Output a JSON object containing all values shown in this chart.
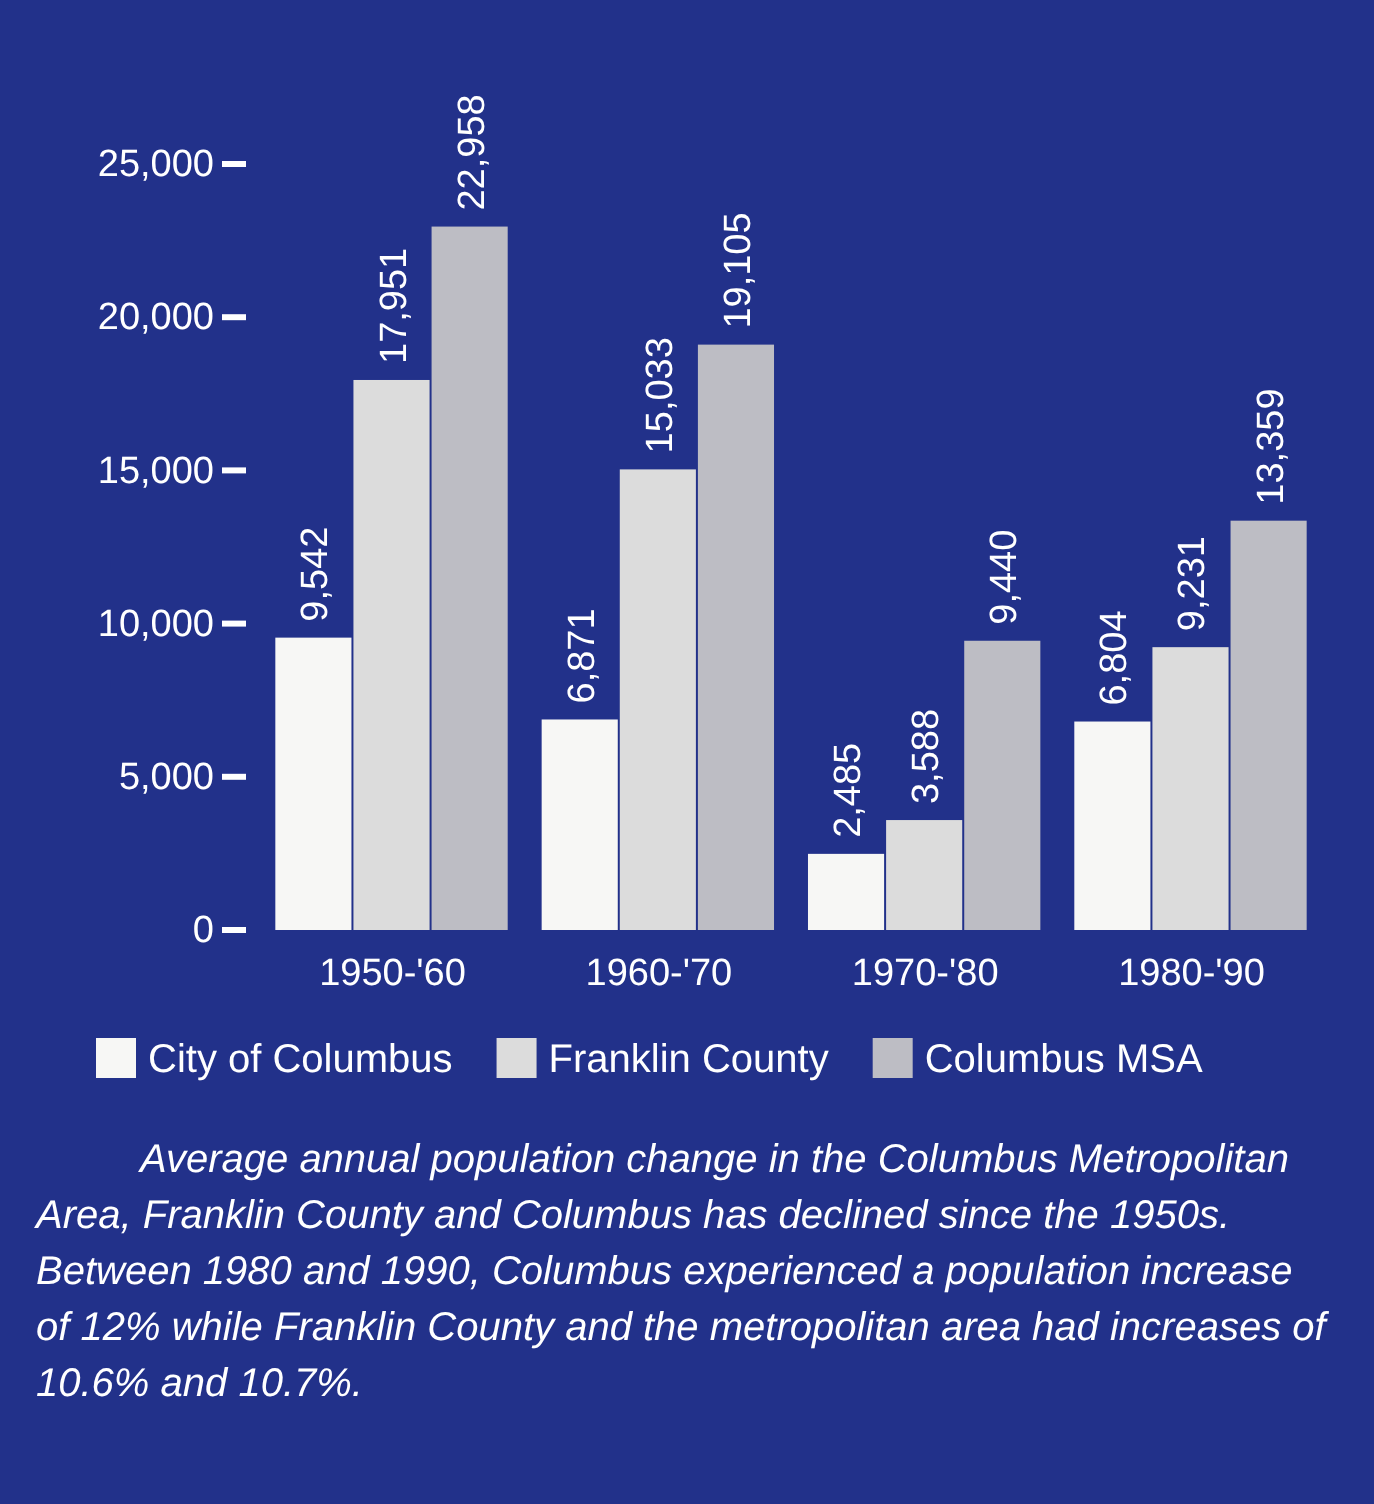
{
  "chart_data": {
    "type": "bar",
    "categories": [
      "1950-'60",
      "1960-'70",
      "1970-'80",
      "1980-'90"
    ],
    "series": [
      {
        "name": "City of Columbus",
        "color": "#f7f7f5",
        "values": [
          9542,
          6871,
          2485,
          6804
        ],
        "value_labels": [
          "9,542",
          "6,871",
          "2,485",
          "6,804"
        ]
      },
      {
        "name": "Franklin County",
        "color": "#dcdcdc",
        "values": [
          17951,
          15033,
          3588,
          9231
        ],
        "value_labels": [
          "17,951",
          "15,033",
          "3,588",
          "9,231"
        ]
      },
      {
        "name": "Columbus MSA",
        "color": "#bdbdc4",
        "values": [
          22958,
          19105,
          9440,
          13359
        ],
        "value_labels": [
          "22,958",
          "19,105",
          "9,440",
          "13,359"
        ]
      }
    ],
    "ylim": [
      0,
      25000
    ],
    "yticks": [
      {
        "value": 0,
        "label": "0"
      },
      {
        "value": 5000,
        "label": "5,000"
      },
      {
        "value": 10000,
        "label": "10,000"
      },
      {
        "value": 15000,
        "label": "15,000"
      },
      {
        "value": 20000,
        "label": "20,000"
      },
      {
        "value": 25000,
        "label": "25,000"
      }
    ],
    "grid": false,
    "legend": "bottom",
    "annotations": [
      "Average annual population change in the Columbus Metropolitan Area, Franklin County and Columbus has declined since the 1950s. Between 1980 and 1990, Columbus experienced a population increase of 12% while Franklin County and the metropolitan area had increases of 10.6% and 10.7%."
    ]
  }
}
